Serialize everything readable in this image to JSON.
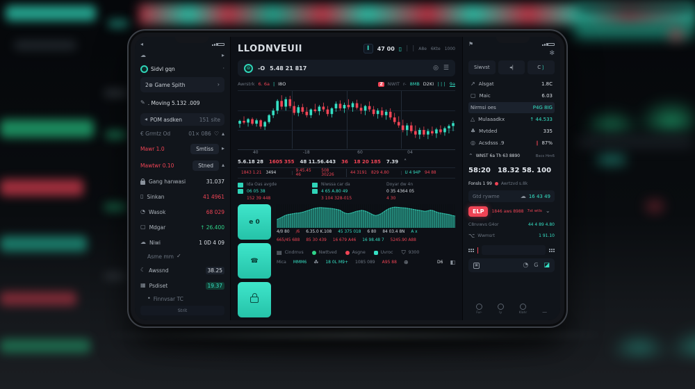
{
  "colors": {
    "accent": "#35e0c4",
    "red": "#f04455",
    "green": "#2fd48a",
    "panel": "#0d1016"
  },
  "left_panel": {
    "brand": "Sidvl gqn",
    "game_card": "2⊛ Game Spith",
    "moving_row": ". Moving 5.132 .009",
    "pom_row": {
      "label": "POM asdken",
      "value": "151 site"
    },
    "grmtz_row": {
      "label": "€ Grmtz Od",
      "value": "01× 086"
    },
    "mawr_row": {
      "label": "Mawr 1.0",
      "action": "Smtiss"
    },
    "mawtwr_row": {
      "label": "Mawtwr 0.10",
      "action": "Stned"
    },
    "stats": [
      {
        "label": "Gang hanwasi",
        "value": "31.037"
      },
      {
        "label": "Sinkan",
        "value": "41 4961"
      },
      {
        "label": "Wasok",
        "value": "68 029"
      },
      {
        "label": "Mdgar",
        "value": "↑ 26.400"
      },
      {
        "label": "Niwi",
        "value": "1 0D 4 09"
      }
    ],
    "section_label": "Asme mm",
    "awssnd_row": {
      "label": "Awssnd",
      "value": "38.25"
    },
    "psdiset_row": {
      "label": "Psdiset",
      "value": "19.37"
    },
    "footnote": "Finnvsar TC",
    "footer": "Strit"
  },
  "center_panel": {
    "title": "LLODNVEUII",
    "header": {
      "value": "47 00",
      "meta1": "A8e",
      "meta2": "6Kte",
      "meta3": "1000"
    },
    "ticker": {
      "prefix": "-O",
      "value": "5.48 21 817"
    },
    "toolbar": {
      "label": "Awrstrk",
      "price": "6. 6a",
      "code": "I8O",
      "badge": "Z",
      "m1": "NWIT",
      "m2": "r-",
      "m3": "8MB",
      "m4": "D2KI",
      "right": "9a"
    },
    "numbers": [
      "5.6.18 28",
      "1605 355",
      "48 11.56.443",
      "36",
      "18 20 185",
      "7.39"
    ],
    "seg": [
      [
        "1843 1.21",
        "3494"
      ],
      [
        "9.45.45 46",
        "508 30226"
      ],
      [
        "44 3191",
        "829 4.80"
      ],
      [
        "U 4 94P",
        "94 88"
      ]
    ],
    "cols": [
      {
        "label": "Ida Oas avgde",
        "v1": "06 05 38",
        "v2": "152 39 448"
      },
      {
        "label": "Niwssa car da",
        "v1": "4 65 A.80 49",
        "v2": "3 104 328-015"
      },
      {
        "label": "Doyar dw 4n",
        "v1": "0 35 4364 05",
        "v2": "4 30"
      }
    ],
    "side_button1": "e 0",
    "area_row1": [
      "4/0 80",
      "/6",
      "6.35.0 K.108",
      "45 375 018",
      "6 80",
      "84 03.4 8N",
      "A x"
    ],
    "area_row2": [
      "665/45 688",
      "85 30 439",
      "16 679 A46",
      "16 98.48 7",
      "5245.90 A88"
    ],
    "bottom1": [
      "Cindrnvs",
      "Nwttved",
      "Asgne",
      "Uvroc",
      "9300"
    ],
    "bottom2": [
      "Mica",
      "MMM6",
      "18 0L M9+",
      "1085 089",
      "A95 88",
      "D6"
    ]
  },
  "right_panel": {
    "buttons": [
      "Siwvst",
      "◂|",
      "C"
    ],
    "list": [
      {
        "label": "Alsgat",
        "value": "1.8C"
      },
      {
        "label": "Maic",
        "value": "6.03"
      },
      {
        "label": "Nirmsi oes",
        "value": "P4G 8IG"
      },
      {
        "label": "Mulaaadkx",
        "value": "↑ 44.533"
      },
      {
        "label": "Mvtded",
        "value": "335"
      },
      {
        "label": "Acsdsss .9",
        "value": "87%"
      }
    ],
    "trend_row": {
      "label": "WNST 6a Th 63 8890",
      "meta": "Bscs Hm6"
    },
    "big1": "58:20",
    "big2": "18.32 58. 100",
    "fonsls_row": {
      "label": "Fonsls 1 99",
      "meta": "Awrtzvd s.8k"
    },
    "gtd_row": {
      "label": "Gtd rywme",
      "value": "16 43 49"
    },
    "elp": {
      "button": "ELP",
      "text": "1846 aws 8988",
      "meta": "7st wtls"
    },
    "c8_row": {
      "label": "C8nvwvs G4or",
      "value": "44 4 89 4.80"
    },
    "wwm_row": {
      "label": "Wwmsrt",
      "value": "1 91.10"
    },
    "nav": [
      "Fur-",
      "ly",
      "Klahr"
    ]
  },
  "chart_data": [
    {
      "type": "candlestick",
      "title": "",
      "x_labels": [
        "40",
        "-18",
        "60",
        "04"
      ],
      "y_range": [
        0,
        100
      ],
      "grid": true,
      "candles": [
        [
          45,
          52,
          38,
          50
        ],
        [
          50,
          58,
          44,
          47
        ],
        [
          47,
          55,
          40,
          53
        ],
        [
          53,
          56,
          42,
          45
        ],
        [
          45,
          54,
          40,
          51
        ],
        [
          51,
          53,
          36,
          40
        ],
        [
          40,
          50,
          34,
          48
        ],
        [
          48,
          62,
          45,
          60
        ],
        [
          60,
          72,
          55,
          68
        ],
        [
          68,
          88,
          62,
          85
        ],
        [
          85,
          95,
          70,
          75
        ],
        [
          75,
          92,
          68,
          88
        ],
        [
          88,
          94,
          72,
          76
        ],
        [
          76,
          84,
          60,
          64
        ],
        [
          64,
          78,
          58,
          74
        ],
        [
          74,
          80,
          62,
          66
        ],
        [
          66,
          74,
          56,
          60
        ],
        [
          60,
          72,
          55,
          70
        ],
        [
          70,
          80,
          64,
          67
        ],
        [
          67,
          78,
          60,
          75
        ],
        [
          75,
          82,
          66,
          70
        ],
        [
          70,
          76,
          58,
          62
        ],
        [
          62,
          74,
          56,
          72
        ],
        [
          72,
          84,
          66,
          80
        ],
        [
          80,
          86,
          68,
          72
        ],
        [
          72,
          82,
          64,
          78
        ],
        [
          78,
          88,
          70,
          74
        ],
        [
          74,
          84,
          66,
          81
        ],
        [
          81,
          87,
          70,
          73
        ],
        [
          73,
          80,
          62,
          68
        ],
        [
          68,
          78,
          60,
          76
        ],
        [
          76,
          84,
          66,
          70
        ],
        [
          70,
          76,
          58,
          62
        ],
        [
          62,
          72,
          54,
          68
        ],
        [
          68,
          74,
          56,
          60
        ],
        [
          60,
          70,
          52,
          66
        ],
        [
          66,
          72,
          52,
          56
        ],
        [
          56,
          64,
          44,
          48
        ],
        [
          48,
          58,
          38,
          42
        ],
        [
          42,
          52,
          30,
          34
        ],
        [
          34,
          46,
          24,
          42
        ],
        [
          42,
          48,
          28,
          32
        ],
        [
          32,
          42,
          20,
          26
        ],
        [
          26,
          38,
          18,
          34
        ],
        [
          34,
          40,
          22,
          26
        ],
        [
          26,
          36,
          18,
          32
        ],
        [
          32,
          40,
          24,
          28
        ],
        [
          28,
          38,
          20,
          35
        ],
        [
          35,
          42,
          26,
          30
        ],
        [
          30,
          40,
          24,
          37
        ],
        [
          37,
          44,
          28,
          41
        ],
        [
          41,
          50,
          32,
          46
        ]
      ]
    },
    {
      "type": "area",
      "values": [
        35,
        40,
        46,
        52,
        56,
        58,
        60,
        62,
        63,
        65,
        68,
        72,
        76,
        80,
        83,
        85,
        86,
        85,
        84,
        83,
        82,
        80,
        78,
        75,
        68,
        62,
        60,
        62,
        66,
        70,
        72,
        74,
        72,
        68,
        62,
        56,
        52,
        55,
        60,
        68,
        76,
        82,
        86,
        88,
        87,
        86,
        85,
        84,
        82,
        80,
        78,
        76,
        74,
        72,
        70,
        72,
        75,
        73,
        68,
        64,
        62,
        60,
        58,
        56,
        52,
        50
      ]
    }
  ]
}
